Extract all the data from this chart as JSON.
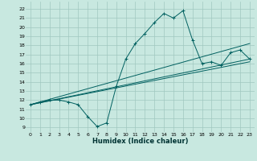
{
  "xlabel": "Humidex (Indice chaleur)",
  "ylabel": "",
  "xlim": [
    -0.5,
    23.5
  ],
  "ylim": [
    8.5,
    22.8
  ],
  "xticks": [
    0,
    1,
    2,
    3,
    4,
    5,
    6,
    7,
    8,
    9,
    10,
    11,
    12,
    13,
    14,
    15,
    16,
    17,
    18,
    19,
    20,
    21,
    22,
    23
  ],
  "yticks": [
    9,
    10,
    11,
    12,
    13,
    14,
    15,
    16,
    17,
    18,
    19,
    20,
    21,
    22
  ],
  "bg_color": "#c8e8e0",
  "grid_color": "#a0c8c0",
  "line_color": "#006060",
  "series": {
    "main": {
      "x": [
        0,
        1,
        2,
        3,
        4,
        5,
        6,
        7,
        8,
        9,
        10,
        11,
        12,
        13,
        14,
        15,
        16,
        17,
        18,
        19,
        20,
        21,
        22,
        23
      ],
      "y": [
        11.5,
        11.8,
        12.0,
        12.0,
        11.8,
        11.5,
        10.2,
        9.1,
        9.5,
        13.5,
        16.5,
        18.2,
        19.3,
        20.5,
        21.5,
        21.0,
        21.8,
        18.6,
        16.0,
        16.2,
        15.8,
        17.2,
        17.5,
        16.5
      ]
    },
    "upper": {
      "x": [
        0,
        23
      ],
      "y": [
        11.5,
        18.2
      ]
    },
    "lower_top": {
      "x": [
        0,
        23
      ],
      "y": [
        11.5,
        16.5
      ]
    },
    "lower_bot": {
      "x": [
        0,
        23
      ],
      "y": [
        11.5,
        16.2
      ]
    }
  }
}
